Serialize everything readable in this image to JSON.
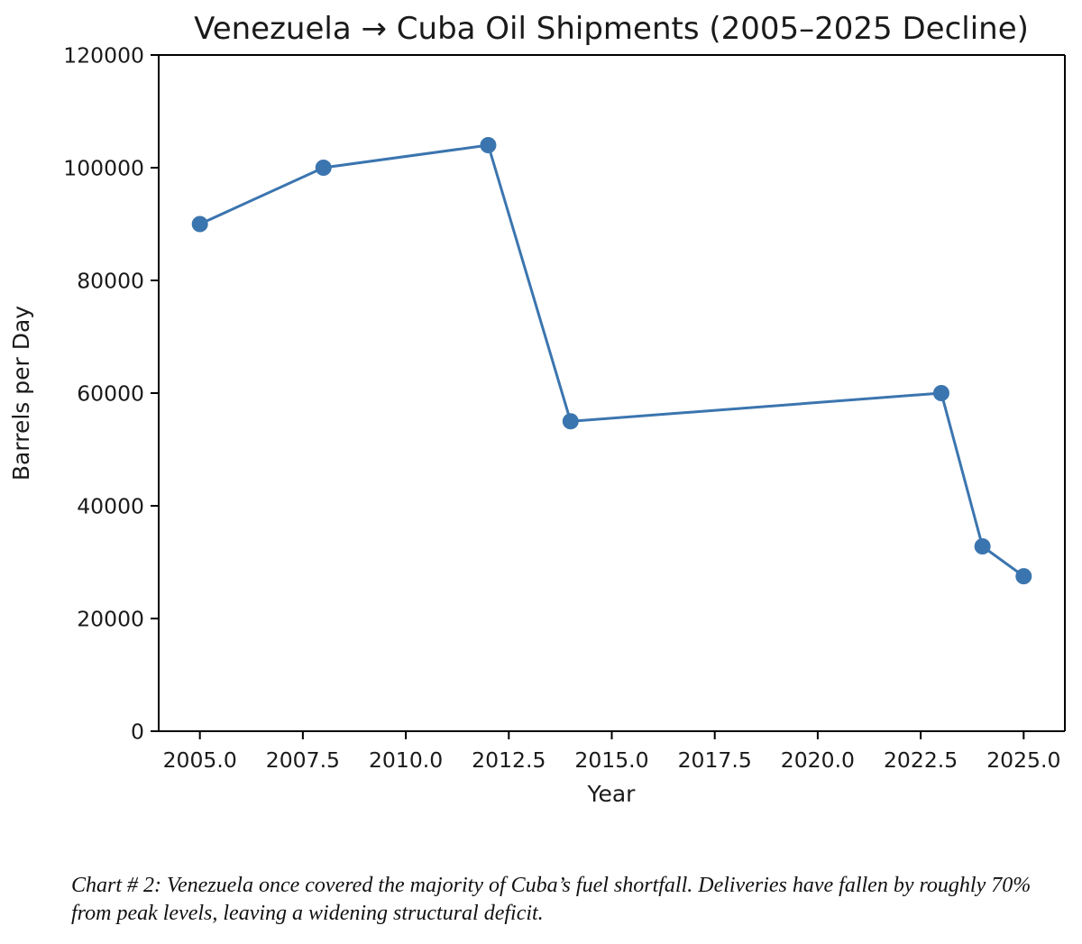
{
  "chart_data": {
    "type": "line",
    "title": "Venezuela → Cuba Oil Shipments (2005–2025 Decline)",
    "xlabel": "Year",
    "ylabel": "Barrels per Day",
    "xlim": [
      2004.0,
      2026.0
    ],
    "ylim": [
      0,
      120000
    ],
    "xticks": [
      2005.0,
      2007.5,
      2010.0,
      2012.5,
      2015.0,
      2017.5,
      2020.0,
      2022.5,
      2025.0
    ],
    "xtick_labels": [
      "2005.0",
      "2007.5",
      "2010.0",
      "2012.5",
      "2015.0",
      "2017.5",
      "2020.0",
      "2022.5",
      "2025.0"
    ],
    "yticks": [
      0,
      20000,
      40000,
      60000,
      80000,
      100000,
      120000
    ],
    "ytick_labels": [
      "0",
      "20000",
      "40000",
      "60000",
      "80000",
      "100000",
      "120000"
    ],
    "grid": false,
    "series": [
      {
        "name": "Barrels per Day",
        "color": "#3b75af",
        "marker": "circle",
        "x": [
          2005,
          2008,
          2012,
          2014,
          2023,
          2024,
          2025
        ],
        "values": [
          90000,
          100000,
          104000,
          55000,
          60000,
          32800,
          27500
        ]
      }
    ]
  },
  "caption": "Chart # 2: Venezuela once covered the majority of Cuba’s fuel shortfall. Deliveries have fallen by roughly 70% from peak levels, leaving a widening structural deficit."
}
